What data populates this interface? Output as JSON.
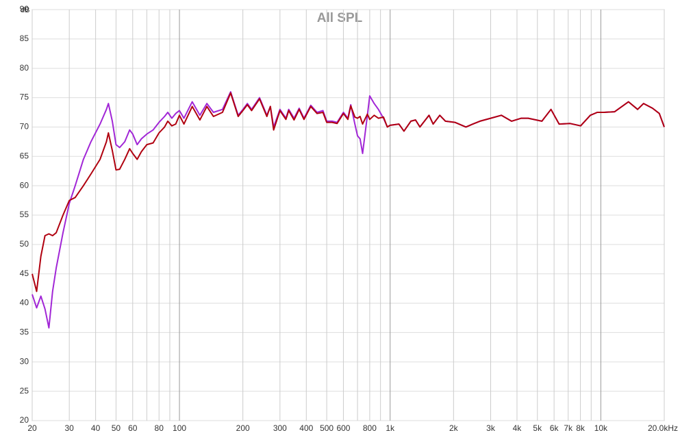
{
  "chart_data": {
    "type": "line",
    "title": "All SPL",
    "ylabel": "dB",
    "xscale": "log",
    "grid": true,
    "xlim": [
      20,
      20000
    ],
    "ylim": [
      20,
      90
    ],
    "yticks": [
      20,
      25,
      30,
      35,
      40,
      45,
      50,
      55,
      60,
      65,
      70,
      75,
      80,
      85,
      90
    ],
    "xticks": [
      20,
      30,
      40,
      50,
      60,
      80,
      100,
      200,
      300,
      400,
      500,
      600,
      800,
      {
        "value": 1000,
        "label": "1k"
      },
      {
        "value": 2000,
        "label": "2k"
      },
      {
        "value": 3000,
        "label": "3k"
      },
      {
        "value": 4000,
        "label": "4k"
      },
      {
        "value": 5000,
        "label": "5k"
      },
      {
        "value": 6000,
        "label": "6k"
      },
      {
        "value": 7000,
        "label": "7k"
      },
      {
        "value": 8000,
        "label": "8k"
      },
      {
        "value": 10000,
        "label": "10k"
      },
      {
        "value": 20000,
        "label": "20.0kHz"
      }
    ],
    "xminor": [
      70,
      90,
      700,
      900,
      9000
    ],
    "x": [
      20,
      21,
      22,
      23,
      24,
      25,
      26,
      28,
      30,
      32,
      35,
      38,
      42,
      45,
      46,
      48,
      50,
      52,
      55,
      58,
      60,
      63,
      66,
      70,
      75,
      80,
      85,
      88,
      92,
      96,
      100,
      105,
      115,
      125,
      135,
      145,
      160,
      175,
      190,
      200,
      210,
      220,
      240,
      260,
      270,
      280,
      300,
      320,
      330,
      350,
      370,
      390,
      420,
      450,
      480,
      500,
      530,
      560,
      600,
      630,
      650,
      680,
      700,
      720,
      740,
      780,
      800,
      840,
      880,
      930,
      970,
      1000,
      1100,
      1163,
      1254,
      1320,
      1385,
      1530,
      1600,
      1720,
      1830,
      2030,
      2290,
      2470,
      2670,
      3000,
      3370,
      3770,
      4190,
      4520,
      5250,
      5800,
      6340,
      7150,
      8020,
      8910,
      9620,
      10370,
      11630,
      13530,
      14950,
      15950,
      17600,
      18950,
      20000
    ],
    "series": [
      {
        "color": "#a126d6",
        "values": [
          41.5,
          39.2,
          41.2,
          39,
          35.8,
          42,
          46,
          52,
          57,
          60,
          64.5,
          67.5,
          70.5,
          73,
          74,
          71,
          67,
          66.5,
          67.5,
          69.5,
          68.8,
          67,
          68,
          68.8,
          69.5,
          70.8,
          71.8,
          72.5,
          71.5,
          72.3,
          72.8,
          71.5,
          74.3,
          72,
          74,
          72.5,
          73,
          76,
          72,
          73,
          74,
          73,
          75,
          72,
          73.5,
          70,
          73,
          71.5,
          73,
          71.5,
          73.2,
          71.5,
          73.7,
          72.5,
          72.8,
          71,
          71,
          70.8,
          72.5,
          71.5,
          73.8,
          70.5,
          68.5,
          68,
          65.5,
          72,
          75.3,
          74,
          73,
          71.5,
          70,
          70.3,
          70.5,
          69.3,
          71,
          71.2,
          70,
          72,
          70.5,
          72,
          71,
          70.8,
          70,
          70.5,
          71,
          71.5,
          72,
          71,
          71.5,
          71.5,
          71,
          73,
          70.5,
          70.6,
          70.2,
          72,
          72.5,
          72.5,
          72.6,
          74.3,
          73,
          74,
          73.2,
          72.3,
          70
        ]
      },
      {
        "color": "#b0000f",
        "values": [
          45,
          42,
          48,
          51.5,
          51.8,
          51.5,
          52,
          55,
          57.5,
          58,
          60,
          62,
          64.5,
          67.5,
          69,
          66,
          62.7,
          62.8,
          64.5,
          66.3,
          65.5,
          64.5,
          65.8,
          67,
          67.3,
          69,
          70,
          71,
          70.2,
          70.5,
          72,
          70.5,
          73.5,
          71.2,
          73.5,
          71.8,
          72.5,
          75.8,
          71.8,
          72.8,
          73.8,
          72.8,
          74.8,
          71.8,
          73.5,
          69.5,
          72.8,
          71.3,
          72.8,
          71.2,
          73,
          71.3,
          73.5,
          72.3,
          72.5,
          70.8,
          70.8,
          70.6,
          72.3,
          71.3,
          73.6,
          71.7,
          71.5,
          71.8,
          70.5,
          72.2,
          71.3,
          72,
          71.5,
          71.7,
          70,
          70.3,
          70.5,
          69.3,
          71,
          71.2,
          70,
          72,
          70.5,
          72,
          71,
          70.8,
          70,
          70.5,
          71,
          71.5,
          72,
          71,
          71.5,
          71.5,
          71,
          73,
          70.5,
          70.6,
          70.2,
          72,
          72.5,
          72.5,
          72.6,
          74.3,
          73,
          74,
          73.2,
          72.3,
          70
        ]
      }
    ]
  }
}
